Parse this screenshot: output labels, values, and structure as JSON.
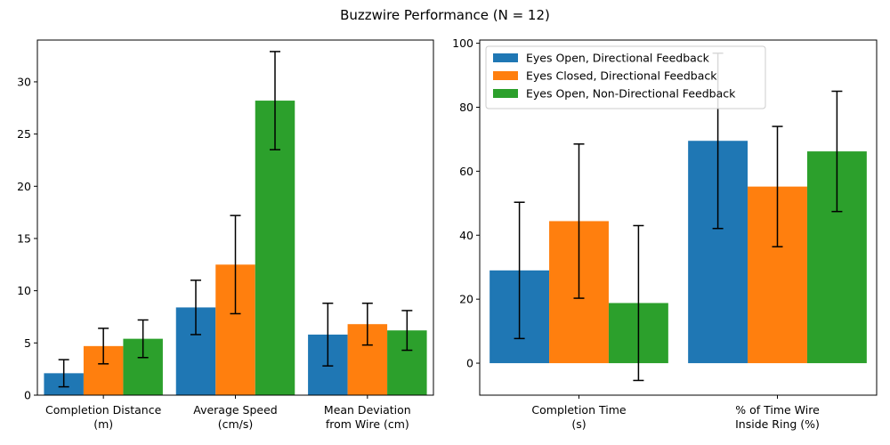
{
  "title": "Buzzwire Performance (N = 12)",
  "colors": {
    "blue": "#1f77b4",
    "orange": "#ff7f0e",
    "green": "#2ca02c"
  },
  "legend": {
    "position": "top-left",
    "entries": [
      "Eyes Open, Directional Feedback",
      "Eyes Closed, Directional Feedback",
      "Eyes Open, Non-Directional Feedback"
    ]
  },
  "chart_data": [
    {
      "type": "bar",
      "categories": [
        [
          "Completion Distance",
          "(m)"
        ],
        [
          "Average Speed",
          "(cm/s)"
        ],
        [
          "Mean Deviation",
          "from Wire (cm)"
        ]
      ],
      "series": [
        {
          "values": [
            2.1,
            8.4,
            5.8
          ],
          "err": [
            1.3,
            2.6,
            3.0
          ]
        },
        {
          "values": [
            4.7,
            12.5,
            6.8
          ],
          "err": [
            1.7,
            4.7,
            2.0
          ]
        },
        {
          "values": [
            5.4,
            28.2,
            6.2
          ],
          "err": [
            1.8,
            4.7,
            1.9
          ]
        }
      ],
      "ylim": [
        0,
        34
      ],
      "yticks": [
        0,
        5,
        10,
        15,
        20,
        25,
        30
      ]
    },
    {
      "type": "bar",
      "categories": [
        [
          "Completion Time",
          "(s)"
        ],
        [
          "% of Time Wire",
          "Inside Ring (%)"
        ]
      ],
      "series": [
        {
          "values": [
            29.0,
            69.5
          ],
          "err": [
            21.3,
            27.4
          ]
        },
        {
          "values": [
            44.4,
            55.2
          ],
          "err": [
            24.1,
            18.8
          ]
        },
        {
          "values": [
            18.8,
            66.2
          ],
          "err": [
            24.2,
            18.8
          ]
        }
      ],
      "ylim": [
        -10,
        101
      ],
      "yticks": [
        0,
        20,
        40,
        60,
        80,
        100
      ]
    }
  ]
}
